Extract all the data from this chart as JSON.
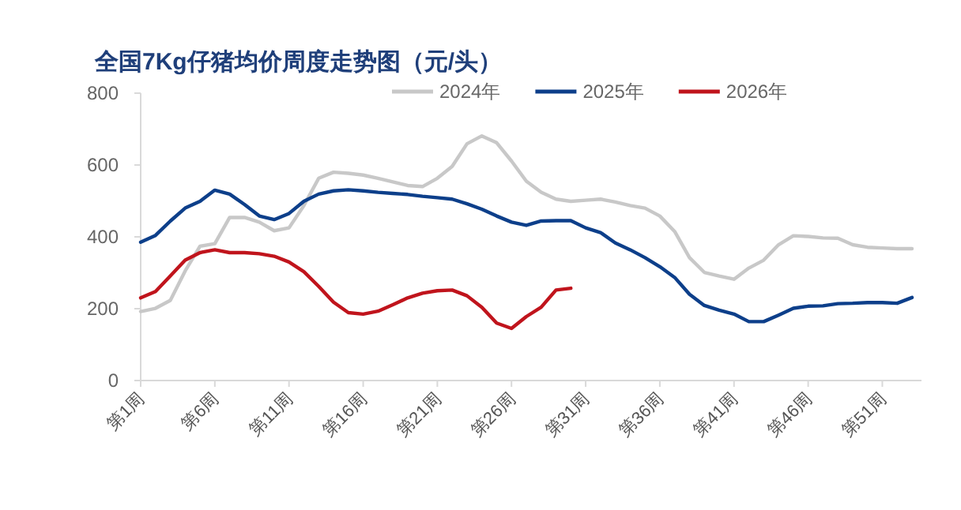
{
  "chart_data": {
    "type": "line",
    "title": "全国7Kg仔猪均价周度走势图（元/头）",
    "categories": [
      "第1周",
      null,
      null,
      null,
      null,
      "第6周",
      null,
      null,
      null,
      null,
      "第11周",
      null,
      null,
      null,
      null,
      "第16周",
      null,
      null,
      null,
      null,
      "第21周",
      null,
      null,
      null,
      null,
      "第26周",
      null,
      null,
      null,
      null,
      "第31周",
      null,
      null,
      null,
      null,
      "第36周",
      null,
      null,
      null,
      null,
      "第41周",
      null,
      null,
      null,
      null,
      "第46周",
      null,
      null,
      null,
      null,
      "第51周",
      null,
      null
    ],
    "series": [
      {
        "name": "2024年",
        "color": "#c8c8c8",
        "values": [
          192,
          201,
          223,
          305,
          374,
          381,
          454,
          454,
          441,
          417,
          425,
          487,
          563,
          580,
          577,
          572,
          563,
          553,
          543,
          540,
          563,
          596,
          659,
          681,
          662,
          611,
          555,
          524,
          505,
          499,
          502,
          505,
          497,
          487,
          480,
          458,
          415,
          342,
          301,
          291,
          282,
          313,
          335,
          378,
          403,
          401,
          397,
          396,
          378,
          371,
          369,
          367,
          367
        ]
      },
      {
        "name": "2025年",
        "color": "#0d3f8a",
        "values": [
          385,
          404,
          444,
          480,
          499,
          530,
          519,
          490,
          458,
          448,
          465,
          499,
          519,
          528,
          531,
          528,
          524,
          521,
          518,
          513,
          509,
          505,
          492,
          477,
          458,
          441,
          432,
          444,
          445,
          445,
          425,
          412,
          383,
          364,
          342,
          317,
          287,
          240,
          209,
          196,
          185,
          164,
          164,
          182,
          201,
          207,
          208,
          214,
          215,
          217,
          217,
          215,
          231
        ]
      },
      {
        "name": "2026年",
        "color": "#c0141c",
        "values": [
          230,
          248,
          291,
          335,
          356,
          364,
          356,
          356,
          353,
          346,
          330,
          303,
          262,
          218,
          189,
          185,
          193,
          211,
          230,
          243,
          250,
          252,
          236,
          204,
          160,
          145,
          178,
          204,
          252,
          257,
          null,
          null,
          null,
          null,
          null,
          null,
          null,
          null,
          null,
          null,
          null,
          null,
          null,
          null,
          null,
          null,
          null,
          null,
          null,
          null,
          null,
          null,
          null
        ]
      }
    ],
    "ylim": [
      0,
      800
    ],
    "yticks": [
      0,
      200,
      400,
      600,
      800
    ],
    "legend": "top"
  }
}
